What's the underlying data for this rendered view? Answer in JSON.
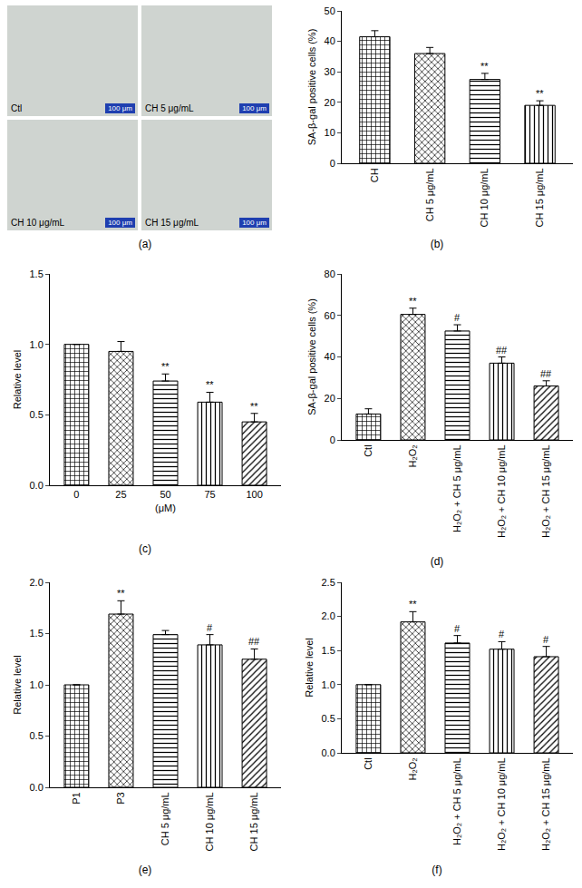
{
  "image_panel": {
    "label": "(a)",
    "tiles": [
      {
        "label": "Ctl",
        "scale_bar": "100 μm"
      },
      {
        "label": "CH 5 μg/mL",
        "scale_bar": "100 μm"
      },
      {
        "label": "CH 10 μg/mL",
        "scale_bar": "100 μm"
      },
      {
        "label": "CH 15 μg/mL",
        "scale_bar": "100 μm"
      }
    ]
  },
  "chart_data": [
    {
      "type": "bar",
      "label": "(b)",
      "y_label": "SA-β-gal positive cells (%)",
      "categories": [
        "CH",
        "CH 5 μg/mL",
        "CH 10 μg/mL",
        "CH 15 μg/mL"
      ],
      "values": [
        41.5,
        36,
        27.5,
        19
      ],
      "errors": [
        2,
        2,
        2,
        1.5
      ],
      "annotations": [
        null,
        null,
        "**",
        "**"
      ],
      "color": "#000000",
      "ylim": [
        0,
        50
      ],
      "yticks": [
        0,
        10,
        20,
        30,
        40,
        50
      ],
      "grid": false
    },
    {
      "type": "bar",
      "label": "(c)",
      "y_label": "Relative level",
      "x_label": "(μM)",
      "categories": [
        "0",
        "25",
        "50",
        "75",
        "100"
      ],
      "values": [
        1.0,
        0.95,
        0.74,
        0.59,
        0.45
      ],
      "errors": [
        0,
        0.07,
        0.05,
        0.07,
        0.06
      ],
      "annotations": [
        null,
        null,
        "**",
        "**",
        "**"
      ],
      "color": "#000000",
      "ylim": [
        0,
        1.5
      ],
      "yticks": [
        {
          "value": 0,
          "label": "0.0"
        },
        {
          "value": 0.5,
          "label": "0.5"
        },
        {
          "value": 1,
          "label": "1.0"
        },
        {
          "value": 1.5,
          "label": "1.5"
        }
      ],
      "grid": false
    },
    {
      "type": "bar",
      "label": "(d)",
      "y_label": "SA-β-gal positive cells (%)",
      "categories": [
        "Ctl",
        "H₂O₂",
        "H₂O₂ + CH 5 μg/mL",
        "H₂O₂ + CH 10 μg/mL",
        "H₂O₂ + CH 15 μg/mL"
      ],
      "values": [
        12.5,
        60.5,
        52.5,
        37,
        26
      ],
      "errors": [
        2.5,
        3,
        3,
        3,
        2.5
      ],
      "annotations": [
        null,
        "**",
        "#",
        "##",
        "##"
      ],
      "color": "#000000",
      "ylim": [
        0,
        80
      ],
      "yticks": [
        0,
        20,
        40,
        60,
        80
      ],
      "grid": false
    },
    {
      "type": "bar",
      "label": "(e)",
      "y_label": "Relative level",
      "categories": [
        "P1",
        "P3",
        "CH 5 μg/mL",
        "CH 10 μg/mL",
        "CH 15 μg/mL"
      ],
      "values": [
        1.0,
        1.69,
        1.49,
        1.39,
        1.25
      ],
      "errors": [
        0,
        0.13,
        0.04,
        0.1,
        0.1
      ],
      "annotations": [
        null,
        "**",
        null,
        "#",
        "##"
      ],
      "color": "#000000",
      "ylim": [
        0,
        2
      ],
      "yticks": [
        {
          "value": 0,
          "label": "0.0"
        },
        {
          "value": 0.5,
          "label": "0.5"
        },
        {
          "value": 1,
          "label": "1.0"
        },
        {
          "value": 1.5,
          "label": "1.5"
        },
        {
          "value": 2,
          "label": "2.0"
        }
      ],
      "grid": false
    },
    {
      "type": "bar",
      "label": "(f)",
      "y_label": "Relative level",
      "categories": [
        "Ctl",
        "H₂O₂",
        "H₂O₂ + CH 5 μg/mL",
        "H₂O₂ + CH 10 μg/mL",
        "H₂O₂ + CH 15 μg/mL"
      ],
      "values": [
        1.0,
        1.92,
        1.61,
        1.52,
        1.41
      ],
      "errors": [
        0,
        0.15,
        0.11,
        0.11,
        0.15
      ],
      "annotations": [
        null,
        "**",
        "#",
        "#",
        "#"
      ],
      "color": "#000000",
      "ylim": [
        0,
        2.5
      ],
      "yticks": [
        {
          "value": 0,
          "label": "0.0"
        },
        {
          "value": 0.5,
          "label": "0.5"
        },
        {
          "value": 1,
          "label": "1.0"
        },
        {
          "value": 1.5,
          "label": "1.5"
        },
        {
          "value": 2,
          "label": "2.0"
        },
        {
          "value": 2.5,
          "label": "2.5"
        }
      ],
      "grid": false
    }
  ]
}
